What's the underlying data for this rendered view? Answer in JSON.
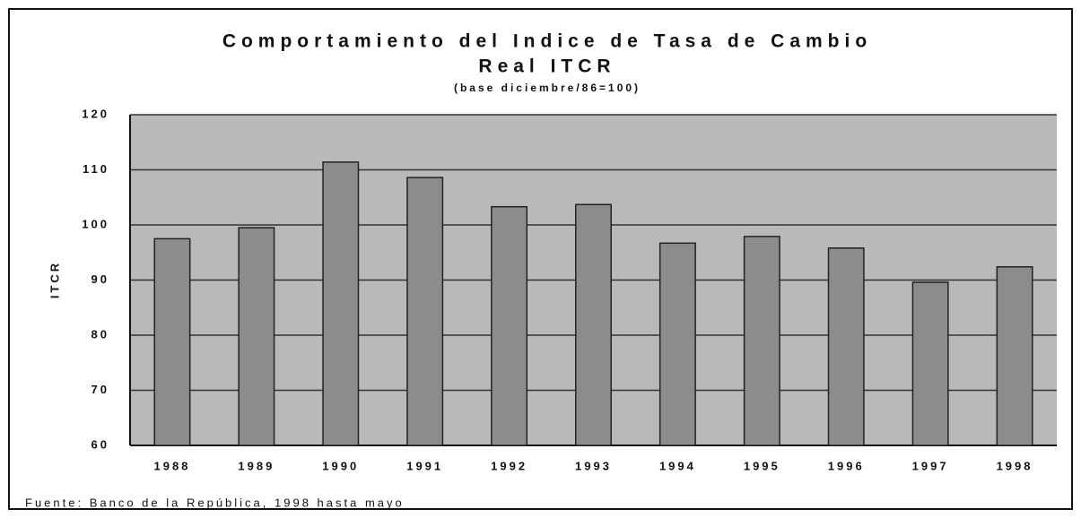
{
  "chart_data": {
    "type": "bar",
    "title": "Comportamiento del Indice de Tasa de Cambio",
    "title_line2": "Real ITCR",
    "subtitle": "(base diciembre/86=100)",
    "y_label": "ITCR",
    "source": "Fuente: Banco de la República, 1998 hasta mayo",
    "categories": [
      "1988",
      "1989",
      "1990",
      "1991",
      "1992",
      "1993",
      "1994",
      "1995",
      "1996",
      "1997",
      "1998"
    ],
    "values": [
      97.5,
      99.5,
      111.4,
      108.6,
      103.3,
      103.7,
      96.7,
      97.9,
      95.8,
      89.6,
      92.4
    ],
    "color": "#8c8c8c",
    "ylim": [
      60,
      120
    ],
    "yticks": [
      60,
      70,
      80,
      90,
      100,
      110,
      120
    ],
    "grid": true
  }
}
